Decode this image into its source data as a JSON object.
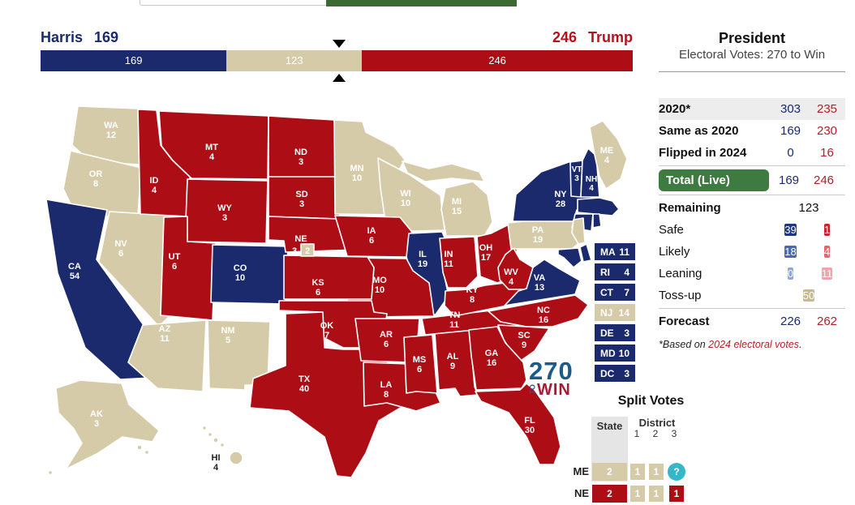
{
  "race_bar": {
    "left_name": "Harris",
    "left_total": "169",
    "right_total": "246",
    "right_name": "Trump",
    "segments": [
      {
        "label": "169",
        "status": "dem"
      },
      {
        "label": "123",
        "status": "tossup"
      },
      {
        "label": "246",
        "status": "rep"
      }
    ],
    "marker_ev": "270"
  },
  "panel": {
    "title": "President",
    "subtitle": "Electoral Votes: 270 to Win",
    "rows": {
      "y2020": {
        "label": "2020*",
        "dem": "303",
        "rep": "235"
      },
      "same": {
        "label": "Same as 2020",
        "dem": "169",
        "rep": "230"
      },
      "flipped": {
        "label": "Flipped in 2024",
        "dem": "0",
        "rep": "16"
      },
      "total": {
        "label": "Total (Live)",
        "dem": "169",
        "rep": "246"
      },
      "remaining": {
        "label": "Remaining",
        "value": "123"
      },
      "safe": {
        "label": "Safe",
        "dem": "39",
        "rep": "1"
      },
      "likely": {
        "label": "Likely",
        "dem": "18",
        "rep": "4"
      },
      "leaning": {
        "label": "Leaning",
        "dem": "0",
        "rep": "11"
      },
      "tossup": {
        "label": "Toss-up",
        "value": "50"
      },
      "forecast": {
        "label": "Forecast",
        "dem": "226",
        "rep": "262"
      }
    },
    "footnote_prefix": "*Based on ",
    "footnote_link": "2024 electoral votes",
    "footnote_suffix": "."
  },
  "logo": {
    "line1": "270",
    "vertical": "TO",
    "line2": "WIN"
  },
  "split_votes": {
    "title": "Split Votes",
    "state_header": "State",
    "district_header": "District",
    "district_cols": [
      "1",
      "2",
      "3"
    ],
    "rows": [
      {
        "abbr": "ME",
        "state": {
          "value": "2",
          "status": "tossup"
        },
        "d1": {
          "value": "1",
          "status": "tossup"
        },
        "d2": {
          "value": "1",
          "status": "tossup"
        },
        "d3": {
          "value": "?",
          "status": "unknown"
        }
      },
      {
        "abbr": "NE",
        "state": {
          "value": "2",
          "status": "rep"
        },
        "d1": {
          "value": "1",
          "status": "tossup"
        },
        "d2": {
          "value": "1",
          "status": "tossup"
        },
        "d3": {
          "value": "1",
          "status": "rep"
        }
      }
    ]
  },
  "map": {
    "states": {
      "WA": {
        "abbr": "WA",
        "ev": "12",
        "status": "tossup"
      },
      "OR": {
        "abbr": "OR",
        "ev": "8",
        "status": "tossup"
      },
      "CA": {
        "abbr": "CA",
        "ev": "54",
        "status": "dem"
      },
      "NV": {
        "abbr": "NV",
        "ev": "6",
        "status": "tossup"
      },
      "ID": {
        "abbr": "ID",
        "ev": "4",
        "status": "rep"
      },
      "MT": {
        "abbr": "MT",
        "ev": "4",
        "status": "rep"
      },
      "WY": {
        "abbr": "WY",
        "ev": "3",
        "status": "rep"
      },
      "UT": {
        "abbr": "UT",
        "ev": "6",
        "status": "rep"
      },
      "CO": {
        "abbr": "CO",
        "ev": "10",
        "status": "dem"
      },
      "AZ": {
        "abbr": "AZ",
        "ev": "11",
        "status": "tossup"
      },
      "NM": {
        "abbr": "NM",
        "ev": "5",
        "status": "tossup"
      },
      "ND": {
        "abbr": "ND",
        "ev": "3",
        "status": "rep"
      },
      "SD": {
        "abbr": "SD",
        "ev": "3",
        "status": "rep"
      },
      "NE": {
        "abbr": "NE",
        "ev": "3",
        "status": "rep"
      },
      "KS": {
        "abbr": "KS",
        "ev": "6",
        "status": "rep"
      },
      "OK": {
        "abbr": "OK",
        "ev": "7",
        "status": "rep"
      },
      "TX": {
        "abbr": "TX",
        "ev": "40",
        "status": "rep"
      },
      "MN": {
        "abbr": "MN",
        "ev": "10",
        "status": "tossup"
      },
      "IA": {
        "abbr": "IA",
        "ev": "6",
        "status": "rep"
      },
      "MO": {
        "abbr": "MO",
        "ev": "10",
        "status": "rep"
      },
      "AR": {
        "abbr": "AR",
        "ev": "6",
        "status": "rep"
      },
      "LA": {
        "abbr": "LA",
        "ev": "8",
        "status": "rep"
      },
      "WI": {
        "abbr": "WI",
        "ev": "10",
        "status": "tossup"
      },
      "IL": {
        "abbr": "IL",
        "ev": "19",
        "status": "dem"
      },
      "MS": {
        "abbr": "MS",
        "ev": "6",
        "status": "rep"
      },
      "MI": {
        "abbr": "MI",
        "ev": "15",
        "status": "tossup"
      },
      "IN": {
        "abbr": "IN",
        "ev": "11",
        "status": "rep"
      },
      "OH": {
        "abbr": "OH",
        "ev": "17",
        "status": "rep"
      },
      "KY": {
        "abbr": "KY",
        "ev": "8",
        "status": "rep"
      },
      "TN": {
        "abbr": "TN",
        "ev": "11",
        "status": "rep"
      },
      "WV": {
        "abbr": "WV",
        "ev": "4",
        "status": "rep"
      },
      "VA": {
        "abbr": "VA",
        "ev": "13",
        "status": "dem"
      },
      "NC": {
        "abbr": "NC",
        "ev": "16",
        "status": "rep"
      },
      "SC": {
        "abbr": "SC",
        "ev": "9",
        "status": "rep"
      },
      "GA": {
        "abbr": "GA",
        "ev": "16",
        "status": "rep"
      },
      "AL": {
        "abbr": "AL",
        "ev": "9",
        "status": "rep"
      },
      "FL": {
        "abbr": "FL",
        "ev": "30",
        "status": "rep"
      },
      "PA": {
        "abbr": "PA",
        "ev": "19",
        "status": "tossup"
      },
      "NY": {
        "abbr": "NY",
        "ev": "28",
        "status": "dem"
      },
      "VT": {
        "abbr": "VT",
        "ev": "3",
        "status": "dem"
      },
      "NH": {
        "abbr": "NH",
        "ev": "4",
        "status": "dem"
      },
      "ME": {
        "abbr": "ME",
        "ev": "4",
        "status": "tossup"
      },
      "MA": {
        "abbr": "MA",
        "ev": "11",
        "status": "dem"
      },
      "RI": {
        "abbr": "RI",
        "ev": "4",
        "status": "dem"
      },
      "CT": {
        "abbr": "CT",
        "ev": "7",
        "status": "dem"
      },
      "NJ": {
        "abbr": "NJ",
        "ev": "14",
        "status": "tossup"
      },
      "DE": {
        "abbr": "DE",
        "ev": "3",
        "status": "dem"
      },
      "MD": {
        "abbr": "MD",
        "ev": "10",
        "status": "dem"
      },
      "DC": {
        "abbr": "DC",
        "ev": "3",
        "status": "dem"
      },
      "AK": {
        "abbr": "AK",
        "ev": "3",
        "status": "tossup"
      },
      "HI": {
        "abbr": "HI",
        "ev": "4",
        "status": "tossup"
      }
    },
    "ne_district_box": {
      "value": "2",
      "status": "tossup"
    },
    "boxed": [
      "MA",
      "RI",
      "CT",
      "NJ",
      "DE",
      "MD",
      "DC"
    ]
  },
  "colors": {
    "dem": "#1a2a6c",
    "rep": "#ad0d15",
    "tossup": "#d6cba8",
    "safe_dem": "#1e3a7e",
    "safe_rep": "#c92231",
    "likely_dem": "#4b69b1",
    "likely_rep": "#f1606b",
    "lean_dem": "#8fa6e4",
    "lean_rep": "#f4a2ab",
    "tossup_badge": "#c6ba8e",
    "total_badge": "#3e7b40",
    "unknown": "#35b7c9",
    "logo_blue": "#1d5a8a",
    "logo_red": "#a51d35"
  }
}
